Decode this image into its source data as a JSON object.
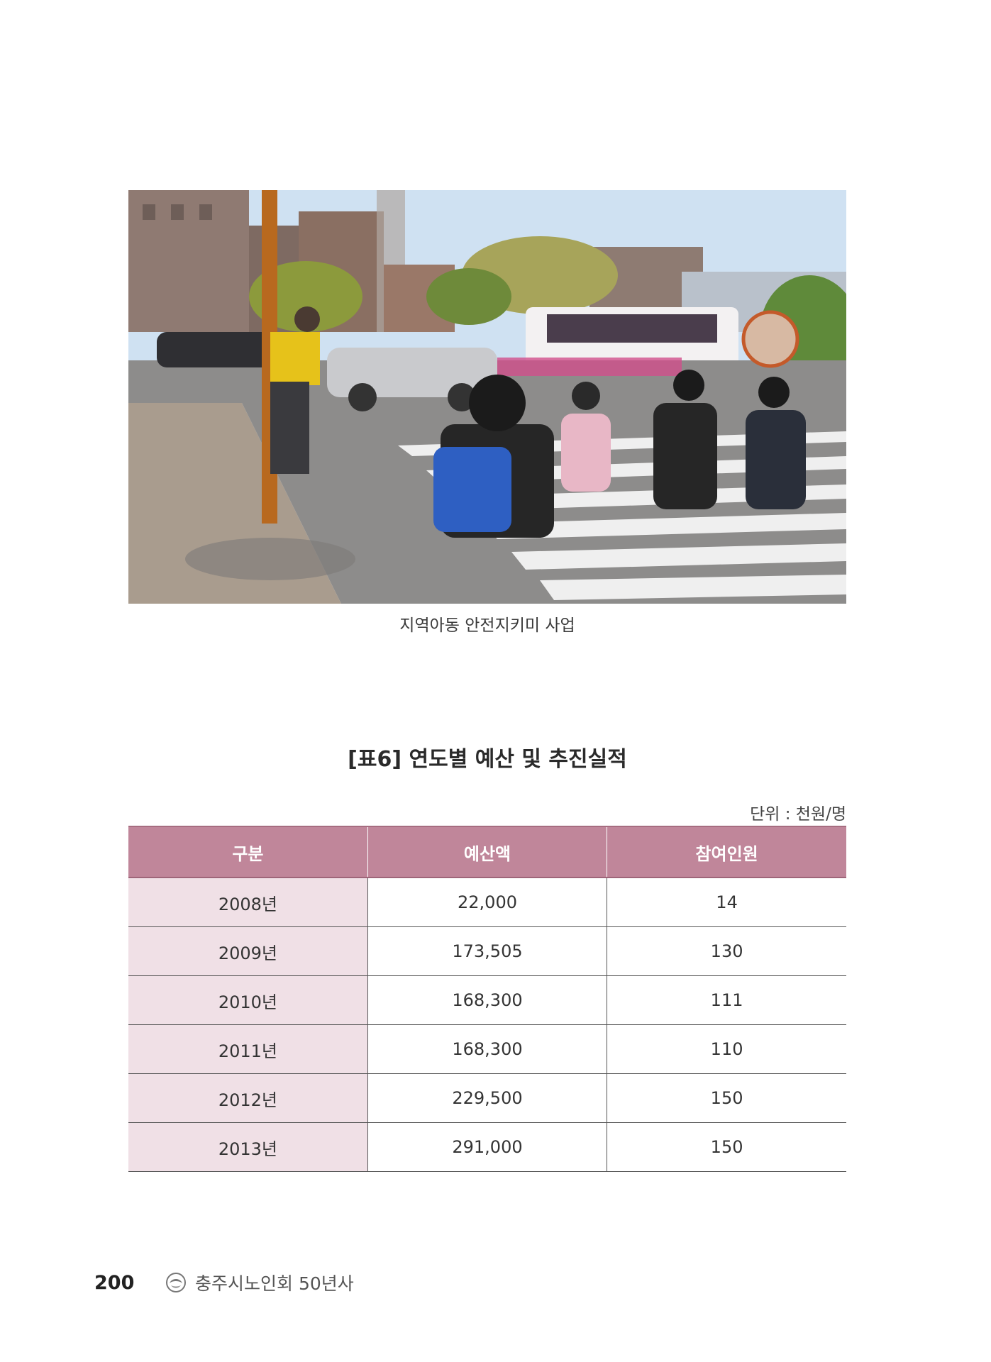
{
  "photo": {
    "icon": "crosswalk-photo",
    "caption": "지역아동 안전지키미 사업"
  },
  "table": {
    "title": "[표6] 연도별 예산 및 추진실적",
    "unit": "단위 : 천원/명",
    "headers": [
      "구분",
      "예산액",
      "참여인원"
    ],
    "rows": [
      [
        "2008년",
        "22,000",
        "14"
      ],
      [
        "2009년",
        "173,505",
        "130"
      ],
      [
        "2010년",
        "168,300",
        "111"
      ],
      [
        "2011년",
        "168,300",
        "110"
      ],
      [
        "2012년",
        "229,500",
        "150"
      ],
      [
        "2013년",
        "291,000",
        "150"
      ]
    ]
  },
  "footer": {
    "page_number": "200",
    "book_title": "충주시노인회 50년사",
    "icon": "emblem-icon"
  },
  "colors": {
    "header_bg": "#c0869a",
    "first_col_bg": "#f0e0e6"
  }
}
